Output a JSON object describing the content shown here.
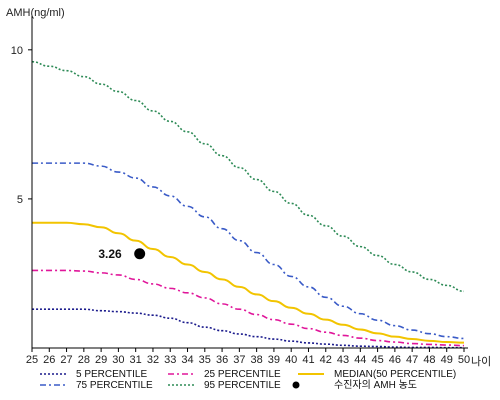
{
  "chart_data": {
    "type": "line",
    "ylabel": "AMH(ng/ml)",
    "xlabel": "나이",
    "xlim": [
      25,
      50
    ],
    "ylim": [
      0,
      11
    ],
    "x_ticks": [
      25,
      26,
      27,
      28,
      29,
      30,
      31,
      32,
      33,
      34,
      35,
      36,
      37,
      38,
      39,
      40,
      41,
      42,
      43,
      44,
      45,
      46,
      47,
      48,
      49,
      50
    ],
    "y_ticks": [
      5,
      10
    ],
    "grid": false,
    "legend_position": "bottom",
    "series": [
      {
        "key": "p5",
        "name": "5 PERCENTILE",
        "color": "#1a1a8c",
        "style": "dotted",
        "x": [
          25,
          26,
          27,
          28,
          29,
          30,
          31,
          32,
          33,
          34,
          35,
          36,
          37,
          38,
          39,
          40,
          41,
          42,
          43,
          44,
          45,
          46,
          47,
          48,
          49,
          50
        ],
        "y": [
          1.3,
          1.3,
          1.3,
          1.3,
          1.25,
          1.22,
          1.17,
          1.1,
          1.0,
          0.85,
          0.7,
          0.58,
          0.47,
          0.38,
          0.3,
          0.23,
          0.17,
          0.13,
          0.09,
          0.06,
          0.05,
          0.03,
          0.02,
          0.02,
          0.01,
          0.01
        ]
      },
      {
        "key": "p25",
        "name": "25 PERCENTILE",
        "color": "#e0169a",
        "style": "dashdot",
        "x": [
          25,
          26,
          27,
          28,
          29,
          30,
          31,
          32,
          33,
          34,
          35,
          36,
          37,
          38,
          39,
          40,
          41,
          42,
          43,
          44,
          45,
          46,
          47,
          48,
          49,
          50
        ],
        "y": [
          2.6,
          2.6,
          2.6,
          2.58,
          2.52,
          2.45,
          2.3,
          2.15,
          2.0,
          1.85,
          1.68,
          1.48,
          1.3,
          1.12,
          0.95,
          0.8,
          0.65,
          0.53,
          0.42,
          0.33,
          0.25,
          0.2,
          0.15,
          0.12,
          0.1,
          0.08
        ]
      },
      {
        "key": "p50",
        "name": "MEDIAN(50 PERCENTILE)",
        "color": "#f2c400",
        "style": "solid",
        "x": [
          25,
          26,
          27,
          28,
          29,
          30,
          31,
          32,
          33,
          34,
          35,
          36,
          37,
          38,
          39,
          40,
          41,
          42,
          43,
          44,
          45,
          46,
          47,
          48,
          49,
          50
        ],
        "y": [
          4.2,
          4.2,
          4.2,
          4.15,
          4.05,
          3.85,
          3.6,
          3.32,
          3.05,
          2.8,
          2.55,
          2.3,
          2.05,
          1.8,
          1.57,
          1.35,
          1.15,
          0.95,
          0.78,
          0.62,
          0.49,
          0.38,
          0.3,
          0.24,
          0.2,
          0.18
        ]
      },
      {
        "key": "p75",
        "name": "75 PERCENTILE",
        "color": "#3a5bc7",
        "style": "dashdot",
        "x": [
          25,
          26,
          27,
          28,
          29,
          30,
          31,
          32,
          33,
          34,
          35,
          36,
          37,
          38,
          39,
          40,
          41,
          42,
          43,
          44,
          45,
          46,
          47,
          48,
          49,
          50
        ],
        "y": [
          6.2,
          6.2,
          6.2,
          6.2,
          6.1,
          5.9,
          5.7,
          5.4,
          5.1,
          4.75,
          4.4,
          4.0,
          3.6,
          3.2,
          2.8,
          2.4,
          2.05,
          1.7,
          1.4,
          1.15,
          0.93,
          0.75,
          0.6,
          0.48,
          0.38,
          0.32
        ]
      },
      {
        "key": "p95",
        "name": "95 PERCENTILE",
        "color": "#2e8b57",
        "style": "dotted",
        "x": [
          25,
          26,
          27,
          28,
          29,
          30,
          31,
          32,
          33,
          34,
          35,
          36,
          37,
          38,
          39,
          40,
          41,
          42,
          43,
          44,
          45,
          46,
          47,
          48,
          49,
          50
        ],
        "y": [
          9.6,
          9.45,
          9.3,
          9.1,
          8.85,
          8.6,
          8.3,
          7.95,
          7.6,
          7.25,
          6.85,
          6.45,
          6.05,
          5.65,
          5.25,
          4.85,
          4.45,
          4.1,
          3.75,
          3.4,
          3.1,
          2.8,
          2.55,
          2.3,
          2.1,
          1.9
        ]
      }
    ],
    "marker": {
      "name": "수진자의 AMH 농도",
      "x": 31,
      "y": 3.26,
      "label": "3.26",
      "color": "#000000"
    },
    "legend_order": [
      "p5",
      "p25",
      "p50",
      "p75",
      "p95",
      "marker"
    ]
  }
}
